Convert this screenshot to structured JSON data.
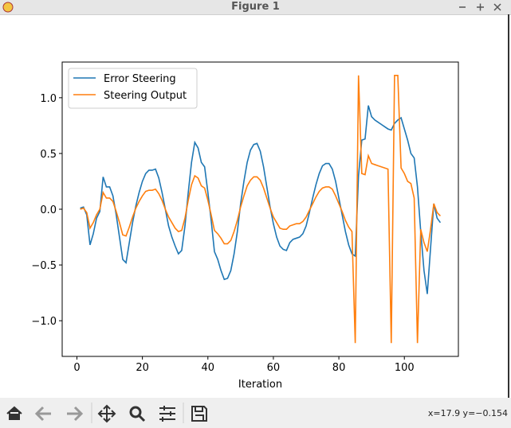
{
  "window": {
    "title": "Figure 1",
    "status": "x=17.9 y=−0.154"
  },
  "chart_data": {
    "type": "line",
    "xlabel": "Iteration",
    "x": [
      1,
      2,
      3,
      4,
      5,
      6,
      7,
      8,
      9,
      10,
      11,
      12,
      13,
      14,
      15,
      16,
      17,
      18,
      19,
      20,
      21,
      22,
      23,
      24,
      25,
      26,
      27,
      28,
      29,
      30,
      31,
      32,
      33,
      34,
      35,
      36,
      37,
      38,
      39,
      40,
      41,
      42,
      43,
      44,
      45,
      46,
      47,
      48,
      49,
      50,
      51,
      52,
      53,
      54,
      55,
      56,
      57,
      58,
      59,
      60,
      61,
      62,
      63,
      64,
      65,
      66,
      67,
      68,
      69,
      70,
      71,
      72,
      73,
      74,
      75,
      76,
      77,
      78,
      79,
      80,
      81,
      82,
      83,
      84,
      85,
      86,
      87,
      88,
      89,
      90,
      91,
      92,
      93,
      94,
      95,
      96,
      97,
      98,
      99,
      100,
      101,
      102,
      103,
      104,
      105,
      106,
      107,
      108,
      109,
      110,
      111
    ],
    "series": [
      {
        "name": "Error Steering",
        "color": "#1f77b4",
        "values": [
          0.01,
          0.02,
          -0.05,
          -0.32,
          -0.22,
          -0.08,
          -0.02,
          0.29,
          0.2,
          0.2,
          0.12,
          -0.05,
          -0.25,
          -0.45,
          -0.48,
          -0.3,
          -0.12,
          0.03,
          0.15,
          0.25,
          0.32,
          0.35,
          0.35,
          0.36,
          0.28,
          0.15,
          0.0,
          -0.15,
          -0.25,
          -0.33,
          -0.4,
          -0.37,
          -0.15,
          0.15,
          0.42,
          0.6,
          0.55,
          0.42,
          0.38,
          0.15,
          -0.1,
          -0.38,
          -0.45,
          -0.55,
          -0.63,
          -0.62,
          -0.55,
          -0.4,
          -0.2,
          0.05,
          0.25,
          0.42,
          0.53,
          0.58,
          0.59,
          0.52,
          0.38,
          0.2,
          0.02,
          -0.13,
          -0.25,
          -0.33,
          -0.36,
          -0.37,
          -0.3,
          -0.27,
          -0.26,
          -0.25,
          -0.22,
          -0.15,
          -0.03,
          0.1,
          0.22,
          0.32,
          0.39,
          0.41,
          0.41,
          0.36,
          0.25,
          0.1,
          -0.05,
          -0.2,
          -0.32,
          -0.4,
          -0.42,
          0.3,
          0.62,
          0.63,
          0.93,
          0.83,
          0.8,
          0.78,
          0.76,
          0.74,
          0.72,
          0.71,
          0.77,
          0.8,
          0.82,
          0.72,
          0.62,
          0.5,
          0.46,
          0.2,
          -0.2,
          -0.55,
          -0.76,
          -0.35,
          0.05,
          -0.08,
          -0.12
        ]
      },
      {
        "name": "Steering Output",
        "color": "#ff7f0e",
        "values": [
          0.0,
          0.01,
          -0.03,
          -0.17,
          -0.12,
          -0.05,
          0.0,
          0.15,
          0.1,
          0.1,
          0.07,
          -0.02,
          -0.12,
          -0.23,
          -0.24,
          -0.16,
          -0.07,
          0.01,
          0.07,
          0.12,
          0.16,
          0.17,
          0.17,
          0.18,
          0.14,
          0.08,
          0.0,
          -0.07,
          -0.12,
          -0.17,
          -0.2,
          -0.19,
          -0.08,
          0.08,
          0.22,
          0.3,
          0.28,
          0.21,
          0.19,
          0.08,
          -0.05,
          -0.19,
          -0.22,
          -0.26,
          -0.31,
          -0.31,
          -0.28,
          -0.2,
          -0.1,
          0.02,
          0.12,
          0.21,
          0.26,
          0.29,
          0.29,
          0.26,
          0.19,
          0.1,
          0.01,
          -0.07,
          -0.12,
          -0.17,
          -0.18,
          -0.18,
          -0.15,
          -0.14,
          -0.13,
          -0.13,
          -0.11,
          -0.07,
          -0.01,
          0.05,
          0.11,
          0.16,
          0.19,
          0.2,
          0.2,
          0.18,
          0.12,
          0.05,
          -0.02,
          -0.1,
          -0.16,
          -0.2,
          -1.2,
          1.2,
          0.32,
          0.31,
          0.48,
          0.41,
          0.4,
          0.39,
          0.38,
          0.37,
          0.36,
          -1.2,
          1.2,
          1.2,
          0.37,
          0.32,
          0.25,
          0.23,
          0.1,
          -1.2,
          -0.18,
          -0.3,
          -0.38,
          -0.18,
          0.05,
          -0.03,
          -0.06
        ]
      }
    ],
    "xlim": [
      -4.5,
      116.5
    ],
    "xticks": [
      0,
      20,
      40,
      60,
      80,
      100
    ],
    "ylim": [
      -1.32,
      1.32
    ],
    "yticks": [
      {
        "value": -1,
        "label": "−1.0"
      },
      {
        "value": -0.5,
        "label": "−0.5"
      },
      {
        "value": 0,
        "label": "0.0"
      },
      0.5,
      {
        "value": 1,
        "label": "1.0"
      }
    ],
    "legend": "upper left",
    "grid": false
  }
}
